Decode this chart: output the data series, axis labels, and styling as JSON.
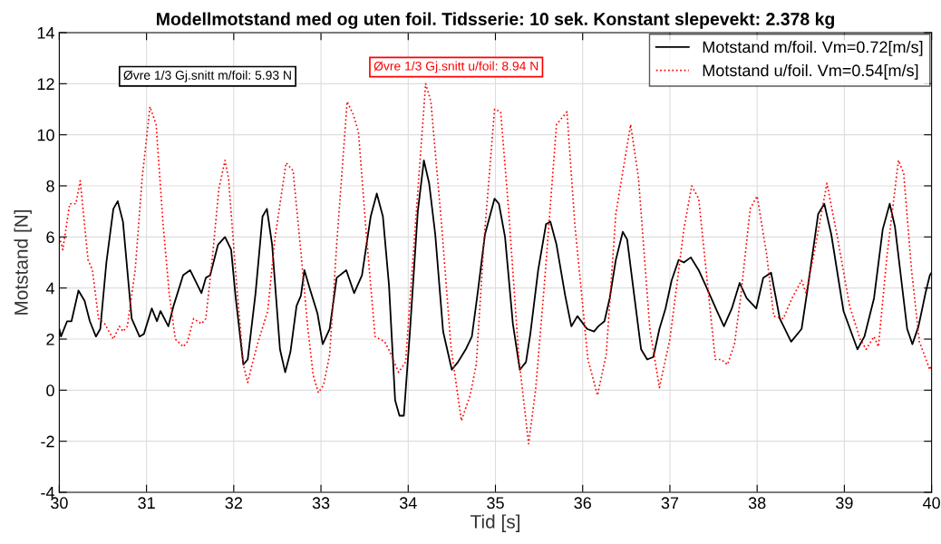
{
  "chart_data": {
    "type": "line",
    "title": "Modellmotstand med og uten foil. Tidsserie: 10 sek. Konstant slepevekt: 2.378 kg",
    "xlabel": "Tid [s]",
    "ylabel": "Motstand [N]",
    "xlim": [
      30,
      40
    ],
    "xticks": [
      30,
      31,
      32,
      33,
      34,
      35,
      36,
      37,
      38,
      39,
      40
    ],
    "ylim": [
      -4,
      14
    ],
    "yticks": [
      -4,
      -2,
      0,
      2,
      4,
      6,
      8,
      10,
      12,
      14
    ],
    "grid": true,
    "legend": "top right",
    "marker": "none",
    "annotations": [
      "Øvre 1/3 Gj.snitt m/foil: 5.93 N",
      "Øvre 1/3 Gj.snitt u/foil: 8.94 N"
    ],
    "series": [
      {
        "name": "Motstand m/foil. Vm=0.72[m/s]",
        "color": "#000000",
        "line_style": "solid",
        "x": [
          30.0,
          30.02,
          30.09,
          30.14,
          30.22,
          30.29,
          30.35,
          30.42,
          30.47,
          30.54,
          30.62,
          30.67,
          30.73,
          30.83,
          30.92,
          30.97,
          31.06,
          31.12,
          31.16,
          31.25,
          31.31,
          31.42,
          31.5,
          31.63,
          31.68,
          31.73,
          31.82,
          31.9,
          31.97,
          32.02,
          32.11,
          32.16,
          32.25,
          32.33,
          32.38,
          32.44,
          32.53,
          32.59,
          32.65,
          32.72,
          32.77,
          32.81,
          32.87,
          32.96,
          33.02,
          33.1,
          33.18,
          33.29,
          33.38,
          33.47,
          33.57,
          33.64,
          33.71,
          33.78,
          33.85,
          33.9,
          33.95,
          34.02,
          34.11,
          34.18,
          34.24,
          34.31,
          34.4,
          34.5,
          34.57,
          34.66,
          34.73,
          34.8,
          34.88,
          34.99,
          35.04,
          35.11,
          35.2,
          35.28,
          35.35,
          35.4,
          35.49,
          35.58,
          35.63,
          35.7,
          35.8,
          35.87,
          35.94,
          36.05,
          36.13,
          36.18,
          36.25,
          36.31,
          36.38,
          36.46,
          36.51,
          36.58,
          36.67,
          36.74,
          36.81,
          36.88,
          36.95,
          37.02,
          37.1,
          37.16,
          37.24,
          37.33,
          37.41,
          37.54,
          37.62,
          37.71,
          37.8,
          37.88,
          37.99,
          38.07,
          38.16,
          38.26,
          38.39,
          38.51,
          38.58,
          38.7,
          38.77,
          38.85,
          38.99,
          39.15,
          39.23,
          39.34,
          39.44,
          39.52,
          39.58,
          39.72,
          39.78,
          39.85,
          39.93,
          39.98,
          40.0
        ],
        "values": [
          2.4,
          2.1,
          2.7,
          2.7,
          3.9,
          3.5,
          2.7,
          2.1,
          2.4,
          5.0,
          7.1,
          7.4,
          6.6,
          2.8,
          2.1,
          2.2,
          3.2,
          2.7,
          3.1,
          2.5,
          3.3,
          4.5,
          4.7,
          3.8,
          4.4,
          4.5,
          5.7,
          6.0,
          5.5,
          3.7,
          1.0,
          1.2,
          3.8,
          6.8,
          7.1,
          5.7,
          1.6,
          0.7,
          1.5,
          3.3,
          3.7,
          4.7,
          4.0,
          3.0,
          1.8,
          2.4,
          4.4,
          4.7,
          3.8,
          4.5,
          6.8,
          7.7,
          6.8,
          4.1,
          -0.4,
          -1.0,
          -1.0,
          2.3,
          7.0,
          9.0,
          8.1,
          6.1,
          2.3,
          0.8,
          1.1,
          1.6,
          2.1,
          3.9,
          6.1,
          7.5,
          7.3,
          6.0,
          2.6,
          0.8,
          1.1,
          2.2,
          4.7,
          6.5,
          6.6,
          5.7,
          3.7,
          2.5,
          2.9,
          2.4,
          2.3,
          2.5,
          2.7,
          3.6,
          5.1,
          6.2,
          5.9,
          4.0,
          1.6,
          1.2,
          1.3,
          2.4,
          3.2,
          4.3,
          5.1,
          5.0,
          5.2,
          4.7,
          4.1,
          3.1,
          2.5,
          3.2,
          4.2,
          3.6,
          3.2,
          4.4,
          4.6,
          2.8,
          1.9,
          2.4,
          4.0,
          6.9,
          7.3,
          6.1,
          3.1,
          1.6,
          2.1,
          3.6,
          6.3,
          7.3,
          6.4,
          2.4,
          1.8,
          2.5,
          3.8,
          4.5,
          4.6
        ]
      },
      {
        "name": "Motstand u/foil. Vm=0.54[m/s]",
        "color": "#ff0000",
        "line_style": "dotted",
        "x": [
          30.0,
          30.04,
          30.12,
          30.19,
          30.24,
          30.33,
          30.38,
          30.45,
          30.52,
          30.62,
          30.69,
          30.73,
          30.78,
          30.87,
          30.95,
          31.04,
          31.11,
          31.19,
          31.26,
          31.33,
          31.42,
          31.47,
          31.54,
          31.63,
          31.68,
          31.75,
          31.83,
          31.9,
          31.94,
          32.02,
          32.11,
          32.16,
          32.21,
          32.28,
          32.39,
          32.47,
          32.6,
          32.68,
          32.77,
          32.85,
          32.91,
          32.97,
          33.03,
          33.1,
          33.18,
          33.3,
          33.37,
          33.43,
          33.52,
          33.62,
          33.73,
          33.79,
          33.89,
          33.97,
          34.07,
          34.2,
          34.26,
          34.38,
          34.49,
          34.61,
          34.71,
          34.78,
          34.87,
          34.99,
          35.06,
          35.15,
          35.27,
          35.38,
          35.46,
          35.56,
          35.7,
          35.82,
          35.91,
          36.06,
          36.17,
          36.27,
          36.38,
          36.55,
          36.64,
          36.77,
          36.88,
          37.0,
          37.16,
          37.25,
          37.33,
          37.43,
          37.52,
          37.59,
          37.66,
          37.74,
          37.81,
          37.92,
          38.0,
          38.11,
          38.19,
          38.3,
          38.4,
          38.51,
          38.56,
          38.65,
          38.8,
          38.92,
          39.06,
          39.18,
          39.25,
          39.34,
          39.39,
          39.49,
          39.62,
          39.68,
          39.77,
          39.86,
          39.98,
          40.0
        ],
        "values": [
          6.0,
          5.5,
          7.3,
          7.3,
          8.2,
          5.1,
          4.7,
          2.8,
          2.6,
          2.0,
          2.5,
          2.3,
          2.5,
          4.7,
          8.3,
          11.1,
          10.4,
          6.5,
          3.8,
          2.0,
          1.7,
          1.9,
          2.8,
          2.6,
          2.8,
          5.0,
          7.9,
          9.0,
          8.3,
          4.7,
          1.0,
          0.3,
          1.0,
          1.9,
          3.1,
          5.9,
          8.9,
          8.6,
          5.4,
          2.4,
          0.6,
          -0.1,
          0.2,
          1.4,
          5.7,
          11.3,
          10.8,
          10.1,
          6.1,
          2.1,
          1.9,
          1.5,
          0.7,
          1.1,
          5.9,
          12.0,
          11.3,
          6.6,
          1.7,
          -1.2,
          -0.2,
          1.0,
          5.9,
          11.0,
          10.9,
          7.1,
          1.2,
          -2.1,
          0.0,
          4.1,
          10.4,
          10.9,
          6.5,
          1.2,
          -0.2,
          1.4,
          6.9,
          10.4,
          8.3,
          2.4,
          0.1,
          2.0,
          6.3,
          8.0,
          7.5,
          4.2,
          1.2,
          1.2,
          1.0,
          1.8,
          3.6,
          7.1,
          7.6,
          5.3,
          2.9,
          2.8,
          3.6,
          4.3,
          3.8,
          5.3,
          8.1,
          6.0,
          3.3,
          2.0,
          1.6,
          2.1,
          1.7,
          5.3,
          9.0,
          8.5,
          4.7,
          1.9,
          0.8,
          1.0
        ]
      }
    ]
  }
}
